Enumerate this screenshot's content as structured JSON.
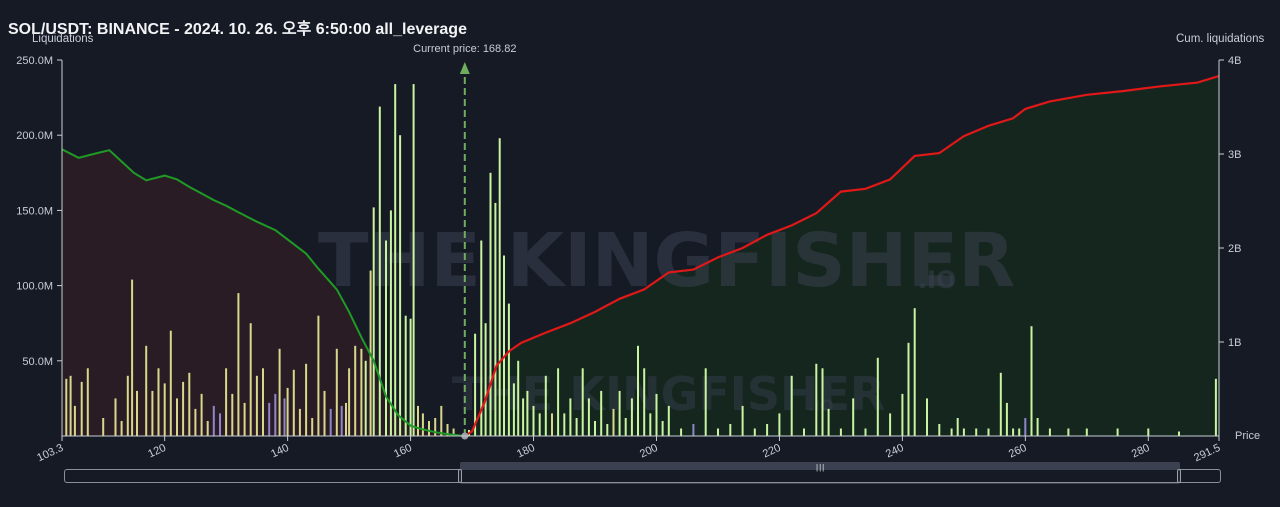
{
  "header": {
    "title": "SOL/USDT: BINANCE - 2024. 10. 26. 오후 6:50:00 all_leverage"
  },
  "watermark": {
    "text": "THE KINGFISHER",
    "suffix": ".IO"
  },
  "scrollbar": {
    "grip": "|||"
  },
  "colors": {
    "background": "#161a25",
    "short_area": "#2a1c25",
    "long_area": "#15261f",
    "short_line": "#1f9a25",
    "long_line": "#e01818",
    "price_marker": "#6fae5d",
    "bar_yellow": "#d9d88a",
    "bar_green": "#c9f5a0",
    "bar_purple": "#8f86c8"
  },
  "chart_data": {
    "type": "bar",
    "title": "SOL/USDT: BINANCE - 2024. 10. 26. 오후 6:50:00 all_leverage",
    "left_axis_label": "Liquidations",
    "right_axis_label": "Cum. liquidations",
    "x_axis_label": "Price",
    "current_price_label": "Current price: 168.82",
    "current_price": 168.82,
    "x_range": [
      103.3,
      291.5
    ],
    "x_ticks": [
      {
        "value": 103.3,
        "label": "103.3"
      },
      {
        "value": 120,
        "label": "120"
      },
      {
        "value": 140,
        "label": "140"
      },
      {
        "value": 160,
        "label": "160"
      },
      {
        "value": 180,
        "label": "180"
      },
      {
        "value": 200,
        "label": "200"
      },
      {
        "value": 220,
        "label": "220"
      },
      {
        "value": 240,
        "label": "240"
      },
      {
        "value": 260,
        "label": "260"
      },
      {
        "value": 280,
        "label": "280"
      },
      {
        "value": 291.5,
        "label": "291.5"
      }
    ],
    "left_ylim": [
      0,
      250000000
    ],
    "left_ticks": [
      {
        "value": 50000000,
        "label": "50.0M"
      },
      {
        "value": 100000000,
        "label": "100.0M"
      },
      {
        "value": 150000000,
        "label": "150.0M"
      },
      {
        "value": 200000000,
        "label": "200.0M"
      },
      {
        "value": 250000000,
        "label": "250.0M"
      }
    ],
    "right_ylim": [
      0,
      4000000000
    ],
    "right_ticks": [
      {
        "value": 1000000000,
        "label": "1B"
      },
      {
        "value": 2000000000,
        "label": "2B"
      },
      {
        "value": 3000000000,
        "label": "3B"
      },
      {
        "value": 4000000000,
        "label": "4B"
      }
    ],
    "short_cumulative": {
      "price": [
        103.3,
        106,
        109,
        111,
        113,
        115,
        117,
        120,
        122,
        124,
        126,
        128,
        130,
        132,
        135,
        138,
        141,
        143,
        145,
        148,
        150,
        152,
        154,
        156,
        158,
        160,
        162,
        164,
        166,
        168.82
      ],
      "value": [
        3050000000,
        2960000000,
        3010000000,
        3040000000,
        2920000000,
        2800000000,
        2720000000,
        2770000000,
        2730000000,
        2650000000,
        2580000000,
        2510000000,
        2450000000,
        2380000000,
        2280000000,
        2190000000,
        2040000000,
        1940000000,
        1780000000,
        1560000000,
        1320000000,
        1050000000,
        800000000,
        420000000,
        220000000,
        110000000,
        70000000,
        40000000,
        20000000,
        0
      ]
    },
    "long_cumulative": {
      "price": [
        168.82,
        170,
        172,
        174,
        176,
        178,
        182,
        186,
        190,
        194,
        198,
        202,
        206,
        210,
        214,
        218,
        222,
        226,
        230,
        234,
        238,
        242,
        246,
        250,
        254,
        258,
        260,
        264,
        270,
        276,
        282,
        288,
        291.5
      ],
      "value": [
        0,
        50000000,
        350000000,
        750000000,
        900000000,
        990000000,
        1100000000,
        1200000000,
        1320000000,
        1460000000,
        1560000000,
        1740000000,
        1770000000,
        1900000000,
        2000000000,
        2140000000,
        2240000000,
        2370000000,
        2600000000,
        2630000000,
        2730000000,
        2980000000,
        3010000000,
        3190000000,
        3300000000,
        3380000000,
        3480000000,
        3560000000,
        3630000000,
        3670000000,
        3720000000,
        3760000000,
        3830000000
      ]
    },
    "bars": [
      {
        "price": 104,
        "value": 38000000,
        "color": "yellow"
      },
      {
        "price": 104.7,
        "value": 40000000,
        "color": "yellow"
      },
      {
        "price": 105.4,
        "value": 20000000,
        "color": "yellow"
      },
      {
        "price": 106.5,
        "value": 36000000,
        "color": "yellow"
      },
      {
        "price": 107.5,
        "value": 45000000,
        "color": "yellow"
      },
      {
        "price": 110,
        "value": 12000000,
        "color": "yellow"
      },
      {
        "price": 112,
        "value": 25000000,
        "color": "yellow"
      },
      {
        "price": 113,
        "value": 10000000,
        "color": "yellow"
      },
      {
        "price": 114,
        "value": 40000000,
        "color": "yellow"
      },
      {
        "price": 114.7,
        "value": 104000000,
        "color": "yellow"
      },
      {
        "price": 115.5,
        "value": 30000000,
        "color": "yellow"
      },
      {
        "price": 117,
        "value": 60000000,
        "color": "yellow"
      },
      {
        "price": 118,
        "value": 30000000,
        "color": "yellow"
      },
      {
        "price": 119,
        "value": 45000000,
        "color": "yellow"
      },
      {
        "price": 120,
        "value": 35000000,
        "color": "yellow"
      },
      {
        "price": 121,
        "value": 70000000,
        "color": "yellow"
      },
      {
        "price": 122,
        "value": 25000000,
        "color": "yellow"
      },
      {
        "price": 123,
        "value": 36000000,
        "color": "yellow"
      },
      {
        "price": 124,
        "value": 42000000,
        "color": "yellow"
      },
      {
        "price": 125,
        "value": 18000000,
        "color": "yellow"
      },
      {
        "price": 126,
        "value": 28000000,
        "color": "yellow"
      },
      {
        "price": 127,
        "value": 10000000,
        "color": "yellow"
      },
      {
        "price": 128,
        "value": 20000000,
        "color": "purple"
      },
      {
        "price": 129,
        "value": 15000000,
        "color": "purple"
      },
      {
        "price": 130,
        "value": 45000000,
        "color": "yellow"
      },
      {
        "price": 131,
        "value": 28000000,
        "color": "yellow"
      },
      {
        "price": 132,
        "value": 95000000,
        "color": "yellow"
      },
      {
        "price": 133,
        "value": 22000000,
        "color": "yellow"
      },
      {
        "price": 134,
        "value": 75000000,
        "color": "yellow"
      },
      {
        "price": 135,
        "value": 40000000,
        "color": "yellow"
      },
      {
        "price": 136,
        "value": 45000000,
        "color": "yellow"
      },
      {
        "price": 137,
        "value": 22000000,
        "color": "purple"
      },
      {
        "price": 138,
        "value": 28000000,
        "color": "purple"
      },
      {
        "price": 138.7,
        "value": 58000000,
        "color": "yellow"
      },
      {
        "price": 139.5,
        "value": 25000000,
        "color": "purple"
      },
      {
        "price": 140,
        "value": 32000000,
        "color": "yellow"
      },
      {
        "price": 141,
        "value": 44000000,
        "color": "yellow"
      },
      {
        "price": 142,
        "value": 18000000,
        "color": "yellow"
      },
      {
        "price": 143,
        "value": 48000000,
        "color": "yellow"
      },
      {
        "price": 144,
        "value": 12000000,
        "color": "yellow"
      },
      {
        "price": 145,
        "value": 80000000,
        "color": "yellow"
      },
      {
        "price": 146,
        "value": 30000000,
        "color": "yellow"
      },
      {
        "price": 147,
        "value": 18000000,
        "color": "purple"
      },
      {
        "price": 148,
        "value": 58000000,
        "color": "yellow"
      },
      {
        "price": 148.8,
        "value": 20000000,
        "color": "purple"
      },
      {
        "price": 149.5,
        "value": 22000000,
        "color": "yellow"
      },
      {
        "price": 150,
        "value": 45000000,
        "color": "yellow"
      },
      {
        "price": 151,
        "value": 60000000,
        "color": "yellow"
      },
      {
        "price": 152,
        "value": 58000000,
        "color": "yellow"
      },
      {
        "price": 152.7,
        "value": 50000000,
        "color": "green"
      },
      {
        "price": 153.5,
        "value": 110000000,
        "color": "yellow"
      },
      {
        "price": 154,
        "value": 152000000,
        "color": "green"
      },
      {
        "price": 155,
        "value": 219000000,
        "color": "green"
      },
      {
        "price": 156,
        "value": 130000000,
        "color": "green"
      },
      {
        "price": 156.8,
        "value": 150000000,
        "color": "green"
      },
      {
        "price": 157.5,
        "value": 234000000,
        "color": "green"
      },
      {
        "price": 158.3,
        "value": 200000000,
        "color": "green"
      },
      {
        "price": 159.2,
        "value": 80000000,
        "color": "green"
      },
      {
        "price": 160,
        "value": 78000000,
        "color": "green"
      },
      {
        "price": 160.5,
        "value": 234000000,
        "color": "green"
      },
      {
        "price": 161.2,
        "value": 20000000,
        "color": "yellow"
      },
      {
        "price": 162,
        "value": 15000000,
        "color": "yellow"
      },
      {
        "price": 163,
        "value": 10000000,
        "color": "yellow"
      },
      {
        "price": 164,
        "value": 12000000,
        "color": "yellow"
      },
      {
        "price": 165,
        "value": 20000000,
        "color": "yellow"
      },
      {
        "price": 166,
        "value": 8000000,
        "color": "yellow"
      },
      {
        "price": 167,
        "value": 5000000,
        "color": "yellow"
      },
      {
        "price": 169.5,
        "value": 4000000,
        "color": "green"
      },
      {
        "price": 170.5,
        "value": 68000000,
        "color": "green"
      },
      {
        "price": 171.5,
        "value": 130000000,
        "color": "green"
      },
      {
        "price": 172.2,
        "value": 75000000,
        "color": "green"
      },
      {
        "price": 173,
        "value": 175000000,
        "color": "green"
      },
      {
        "price": 173.8,
        "value": 155000000,
        "color": "green"
      },
      {
        "price": 174.5,
        "value": 198000000,
        "color": "green"
      },
      {
        "price": 175.2,
        "value": 120000000,
        "color": "green"
      },
      {
        "price": 176,
        "value": 88000000,
        "color": "green"
      },
      {
        "price": 176.8,
        "value": 35000000,
        "color": "green"
      },
      {
        "price": 177.5,
        "value": 50000000,
        "color": "green"
      },
      {
        "price": 178.3,
        "value": 25000000,
        "color": "green"
      },
      {
        "price": 179,
        "value": 30000000,
        "color": "green"
      },
      {
        "price": 180,
        "value": 20000000,
        "color": "green"
      },
      {
        "price": 181,
        "value": 15000000,
        "color": "green"
      },
      {
        "price": 182,
        "value": 40000000,
        "color": "green"
      },
      {
        "price": 183,
        "value": 15000000,
        "color": "yellow"
      },
      {
        "price": 184,
        "value": 45000000,
        "color": "green"
      },
      {
        "price": 185,
        "value": 15000000,
        "color": "green"
      },
      {
        "price": 186,
        "value": 25000000,
        "color": "green"
      },
      {
        "price": 187,
        "value": 12000000,
        "color": "green"
      },
      {
        "price": 188,
        "value": 45000000,
        "color": "green"
      },
      {
        "price": 189,
        "value": 25000000,
        "color": "green"
      },
      {
        "price": 190,
        "value": 10000000,
        "color": "green"
      },
      {
        "price": 191,
        "value": 30000000,
        "color": "green"
      },
      {
        "price": 192,
        "value": 8000000,
        "color": "green"
      },
      {
        "price": 193,
        "value": 18000000,
        "color": "yellow"
      },
      {
        "price": 194,
        "value": 30000000,
        "color": "green"
      },
      {
        "price": 195,
        "value": 12000000,
        "color": "green"
      },
      {
        "price": 196,
        "value": 25000000,
        "color": "green"
      },
      {
        "price": 197,
        "value": 60000000,
        "color": "green"
      },
      {
        "price": 198,
        "value": 45000000,
        "color": "green"
      },
      {
        "price": 199,
        "value": 15000000,
        "color": "green"
      },
      {
        "price": 200,
        "value": 28000000,
        "color": "green"
      },
      {
        "price": 201,
        "value": 10000000,
        "color": "green"
      },
      {
        "price": 202,
        "value": 20000000,
        "color": "green"
      },
      {
        "price": 204,
        "value": 5000000,
        "color": "green"
      },
      {
        "price": 206,
        "value": 8000000,
        "color": "purple"
      },
      {
        "price": 208,
        "value": 45000000,
        "color": "green"
      },
      {
        "price": 210,
        "value": 5000000,
        "color": "green"
      },
      {
        "price": 212,
        "value": 8000000,
        "color": "green"
      },
      {
        "price": 214,
        "value": 20000000,
        "color": "green"
      },
      {
        "price": 216,
        "value": 5000000,
        "color": "green"
      },
      {
        "price": 218,
        "value": 8000000,
        "color": "green"
      },
      {
        "price": 220,
        "value": 15000000,
        "color": "green"
      },
      {
        "price": 222,
        "value": 40000000,
        "color": "green"
      },
      {
        "price": 224,
        "value": 5000000,
        "color": "green"
      },
      {
        "price": 226,
        "value": 48000000,
        "color": "green"
      },
      {
        "price": 227,
        "value": 45000000,
        "color": "green"
      },
      {
        "price": 228,
        "value": 18000000,
        "color": "green"
      },
      {
        "price": 230,
        "value": 5000000,
        "color": "green"
      },
      {
        "price": 232,
        "value": 25000000,
        "color": "green"
      },
      {
        "price": 234,
        "value": 5000000,
        "color": "green"
      },
      {
        "price": 236,
        "value": 52000000,
        "color": "green"
      },
      {
        "price": 238,
        "value": 15000000,
        "color": "green"
      },
      {
        "price": 240,
        "value": 28000000,
        "color": "green"
      },
      {
        "price": 241,
        "value": 62000000,
        "color": "green"
      },
      {
        "price": 242,
        "value": 85000000,
        "color": "green"
      },
      {
        "price": 244,
        "value": 25000000,
        "color": "green"
      },
      {
        "price": 246,
        "value": 8000000,
        "color": "green"
      },
      {
        "price": 248,
        "value": 5000000,
        "color": "green"
      },
      {
        "price": 249,
        "value": 12000000,
        "color": "green"
      },
      {
        "price": 250,
        "value": 5000000,
        "color": "green"
      },
      {
        "price": 252,
        "value": 5000000,
        "color": "green"
      },
      {
        "price": 254,
        "value": 5000000,
        "color": "green"
      },
      {
        "price": 256,
        "value": 42000000,
        "color": "green"
      },
      {
        "price": 257,
        "value": 22000000,
        "color": "green"
      },
      {
        "price": 258,
        "value": 5000000,
        "color": "green"
      },
      {
        "price": 259,
        "value": 5000000,
        "color": "green"
      },
      {
        "price": 260,
        "value": 12000000,
        "color": "purple"
      },
      {
        "price": 261,
        "value": 73000000,
        "color": "green"
      },
      {
        "price": 262,
        "value": 12000000,
        "color": "green"
      },
      {
        "price": 264,
        "value": 5000000,
        "color": "green"
      },
      {
        "price": 267,
        "value": 5000000,
        "color": "green"
      },
      {
        "price": 270,
        "value": 5000000,
        "color": "green"
      },
      {
        "price": 275,
        "value": 5000000,
        "color": "green"
      },
      {
        "price": 280,
        "value": 5000000,
        "color": "green"
      },
      {
        "price": 285,
        "value": 3000000,
        "color": "green"
      },
      {
        "price": 291,
        "value": 38000000,
        "color": "green"
      }
    ]
  }
}
